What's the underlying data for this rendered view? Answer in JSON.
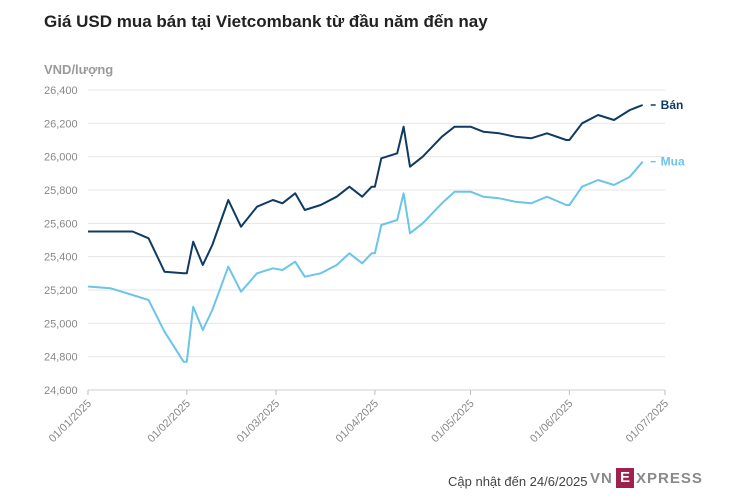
{
  "chart_data": {
    "type": "line",
    "title": "Giá USD mua bán tại Vietcombank từ đầu năm đến nay",
    "ylabel": "VND/lượng",
    "ylim": [
      24600,
      26400
    ],
    "yticks": [
      "24,600",
      "24,800",
      "25,000",
      "25,200",
      "25,400",
      "25,600",
      "25,800",
      "26,000",
      "26,200",
      "26,400"
    ],
    "xticks": [
      "01/01/2025",
      "01/02/2025",
      "01/03/2025",
      "01/04/2025",
      "01/05/2025",
      "01/06/2025",
      "01/07/2025"
    ],
    "grid": true,
    "series": [
      {
        "name": "Bán",
        "color": "#0f3b63",
        "points": [
          [
            "01/01",
            25551
          ],
          [
            "08/01",
            25551
          ],
          [
            "15/01",
            25551
          ],
          [
            "20/01",
            25510
          ],
          [
            "25/01",
            25310
          ],
          [
            "31/01",
            25300
          ],
          [
            "01/02",
            25300
          ],
          [
            "03/02",
            25490
          ],
          [
            "06/02",
            25350
          ],
          [
            "09/02",
            25470
          ],
          [
            "14/02",
            25740
          ],
          [
            "18/02",
            25580
          ],
          [
            "23/02",
            25700
          ],
          [
            "28/02",
            25740
          ],
          [
            "03/03",
            25720
          ],
          [
            "07/03",
            25780
          ],
          [
            "10/03",
            25680
          ],
          [
            "15/03",
            25710
          ],
          [
            "20/03",
            25760
          ],
          [
            "24/03",
            25820
          ],
          [
            "28/03",
            25760
          ],
          [
            "31/03",
            25820
          ],
          [
            "01/04",
            25820
          ],
          [
            "03/04",
            25990
          ],
          [
            "08/04",
            26020
          ],
          [
            "10/04",
            26180
          ],
          [
            "12/04",
            25940
          ],
          [
            "16/04",
            26000
          ],
          [
            "22/04",
            26120
          ],
          [
            "26/04",
            26180
          ],
          [
            "30/04",
            26180
          ],
          [
            "01/05",
            26180
          ],
          [
            "05/05",
            26150
          ],
          [
            "10/05",
            26140
          ],
          [
            "15/05",
            26120
          ],
          [
            "20/05",
            26110
          ],
          [
            "25/05",
            26140
          ],
          [
            "31/05",
            26100
          ],
          [
            "01/06",
            26100
          ],
          [
            "05/06",
            26200
          ],
          [
            "10/06",
            26250
          ],
          [
            "15/06",
            26220
          ],
          [
            "20/06",
            26280
          ],
          [
            "24/06",
            26310
          ]
        ]
      },
      {
        "name": "Mua",
        "color": "#6cc5e8",
        "points": [
          [
            "01/01",
            25221
          ],
          [
            "08/01",
            25211
          ],
          [
            "15/01",
            25170
          ],
          [
            "20/01",
            25140
          ],
          [
            "25/01",
            24950
          ],
          [
            "31/01",
            24770
          ],
          [
            "01/02",
            24770
          ],
          [
            "03/02",
            25100
          ],
          [
            "06/02",
            24960
          ],
          [
            "09/02",
            25080
          ],
          [
            "14/02",
            25340
          ],
          [
            "18/02",
            25190
          ],
          [
            "23/02",
            25300
          ],
          [
            "28/02",
            25330
          ],
          [
            "03/03",
            25320
          ],
          [
            "07/03",
            25370
          ],
          [
            "10/03",
            25280
          ],
          [
            "15/03",
            25300
          ],
          [
            "20/03",
            25350
          ],
          [
            "24/03",
            25420
          ],
          [
            "28/03",
            25360
          ],
          [
            "31/03",
            25420
          ],
          [
            "01/04",
            25420
          ],
          [
            "03/04",
            25590
          ],
          [
            "08/04",
            25620
          ],
          [
            "10/04",
            25780
          ],
          [
            "12/04",
            25540
          ],
          [
            "16/04",
            25600
          ],
          [
            "22/04",
            25720
          ],
          [
            "26/04",
            25790
          ],
          [
            "30/04",
            25790
          ],
          [
            "01/05",
            25790
          ],
          [
            "05/05",
            25760
          ],
          [
            "10/05",
            25750
          ],
          [
            "15/05",
            25730
          ],
          [
            "20/05",
            25720
          ],
          [
            "25/05",
            25760
          ],
          [
            "31/05",
            25710
          ],
          [
            "01/06",
            25710
          ],
          [
            "05/06",
            25820
          ],
          [
            "10/06",
            25860
          ],
          [
            "15/06",
            25830
          ],
          [
            "20/06",
            25880
          ],
          [
            "24/06",
            25970
          ]
        ]
      }
    ]
  },
  "footer": {
    "updated": "Cập nhật đến 24/6/2025"
  },
  "logo": {
    "left": "VN",
    "mark": "E",
    "right": "XPRESS",
    "color": "#9f224e"
  }
}
